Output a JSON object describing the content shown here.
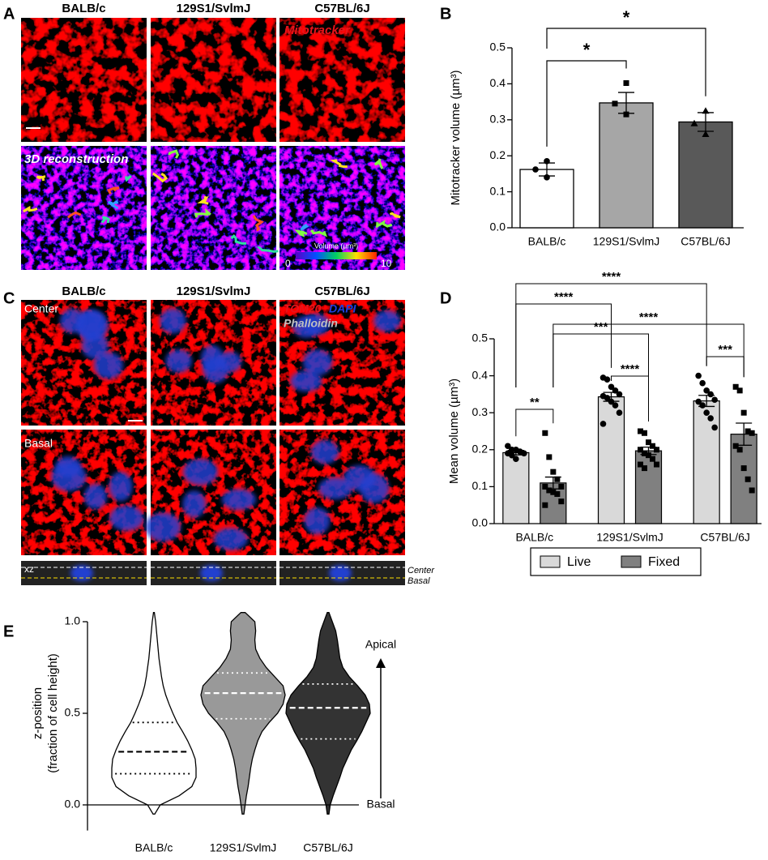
{
  "panel_labels": [
    "A",
    "B",
    "C",
    "D",
    "E"
  ],
  "panel_a": {
    "columns": [
      "BALB/c",
      "129S1/SvlmJ",
      "C57BL/6J"
    ],
    "stain_label": "Mitotracker",
    "row_label": "3D reconstruction",
    "colorbar": {
      "label": "Volume (µm³)",
      "min": 0,
      "max": 10
    }
  },
  "panel_c": {
    "columns": [
      "BALB/c",
      "129S1/SvlmJ",
      "C57BL/6J"
    ],
    "stains": [
      "TOM20",
      "DAPI",
      "Phalloidin"
    ],
    "stain_colors": [
      "#e8141b",
      "#1f3fe0",
      "#c0c0c0"
    ],
    "row_labels": [
      "Center",
      "Basal"
    ],
    "xz_label": "xz",
    "plane_labels": [
      "Center",
      "Basal"
    ]
  },
  "chart_data": [
    {
      "type": "bar",
      "categories": [
        "BALB/c",
        "129S1/SvlmJ",
        "C57BL/6J"
      ],
      "values": [
        0.162,
        0.347,
        0.294
      ],
      "errors": [
        0.018,
        0.029,
        0.026
      ],
      "points": [
        [
          0.185,
          0.162,
          0.14
        ],
        [
          0.402,
          0.345,
          0.315
        ],
        [
          0.325,
          0.29,
          0.26
        ]
      ],
      "markers": [
        "circle",
        "square",
        "triangle"
      ],
      "colors": [
        "#ffffff",
        "#a6a6a6",
        "#595959"
      ],
      "ylabel": "Mitotracker volume  (µm³)",
      "ylim": [
        0,
        0.5
      ],
      "yticks": [
        {
          "value": 0,
          "label": "0.0"
        },
        0.1,
        0.2,
        0.3,
        0.4,
        0.5
      ],
      "comparisons": [
        {
          "pair": [
            0,
            1
          ],
          "label": "*"
        },
        {
          "pair": [
            0,
            2
          ],
          "label": "*"
        }
      ]
    },
    {
      "type": "grouped_bar",
      "categories": [
        "BALB/c",
        "129S1/SvlmJ",
        "C57BL/6J"
      ],
      "series": [
        {
          "name": "Live",
          "color": "#d9d9d9",
          "marker": "circle",
          "values": [
            0.192,
            0.343,
            0.332
          ],
          "errors": [
            0.006,
            0.012,
            0.015
          ],
          "points": [
            [
              0.21,
              0.2,
              0.2,
              0.195,
              0.19,
              0.19,
              0.185,
              0.175
            ],
            [
              0.395,
              0.39,
              0.37,
              0.36,
              0.35,
              0.345,
              0.34,
              0.33,
              0.32,
              0.3,
              0.27
            ],
            [
              0.4,
              0.38,
              0.36,
              0.35,
              0.335,
              0.33,
              0.32,
              0.3,
              0.285,
              0.26
            ]
          ]
        },
        {
          "name": "Fixed",
          "color": "#808080",
          "marker": "square",
          "values": [
            0.11,
            0.197,
            0.242
          ],
          "errors": [
            0.016,
            0.01,
            0.03
          ],
          "points": [
            [
              0.245,
              0.18,
              0.14,
              0.12,
              0.1,
              0.1,
              0.09,
              0.085,
              0.08,
              0.06,
              0.05
            ],
            [
              0.25,
              0.245,
              0.22,
              0.21,
              0.2,
              0.2,
              0.19,
              0.185,
              0.175,
              0.16,
              0.16,
              0.15
            ],
            [
              0.37,
              0.36,
              0.3,
              0.25,
              0.245,
              0.21,
              0.2,
              0.15,
              0.12,
              0.09
            ]
          ]
        }
      ],
      "ylabel": "Mean volume  (µm³)",
      "ylim": [
        0,
        0.5
      ],
      "yticks": [
        {
          "value": 0,
          "label": "0.0"
        },
        0.1,
        0.2,
        0.3,
        0.4,
        0.5
      ],
      "legend": "bottom",
      "comparisons": [
        {
          "pair": [
            [
              0,
              0
            ],
            [
              0,
              1
            ]
          ],
          "label": "**"
        },
        {
          "pair": [
            [
              1,
              0
            ],
            [
              1,
              1
            ]
          ],
          "label": "****"
        },
        {
          "pair": [
            [
              2,
              0
            ],
            [
              2,
              1
            ]
          ],
          "label": "***"
        },
        {
          "pair": [
            [
              0,
              1
            ],
            [
              1,
              1
            ]
          ],
          "label": "***"
        },
        {
          "pair": [
            [
              0,
              1
            ],
            [
              2,
              1
            ]
          ],
          "label": "****"
        },
        {
          "pair": [
            [
              0,
              0
            ],
            [
              1,
              0
            ]
          ],
          "label": "****"
        },
        {
          "pair": [
            [
              0,
              0
            ],
            [
              2,
              0
            ]
          ],
          "label": "****"
        }
      ]
    },
    {
      "type": "violin",
      "categories": [
        "BALB/c",
        "129S1/SvlmJ",
        "C57BL/6J"
      ],
      "colors": [
        "#ffffff",
        "#999999",
        "#333333"
      ],
      "quartile_colors": [
        "#000000",
        "#ffffff",
        "#ffffff"
      ],
      "quartiles": [
        [
          0.17,
          0.29,
          0.45
        ],
        [
          0.47,
          0.61,
          0.72
        ],
        [
          0.36,
          0.53,
          0.66
        ]
      ],
      "density_y": [
        -0.05,
        0,
        0.05,
        0.1,
        0.15,
        0.2,
        0.25,
        0.3,
        0.35,
        0.4,
        0.45,
        0.5,
        0.55,
        0.6,
        0.65,
        0.7,
        0.75,
        0.8,
        0.85,
        0.9,
        0.95,
        1,
        1.05
      ],
      "densities": [
        [
          0.02,
          0.15,
          0.6,
          0.9,
          1,
          1,
          0.98,
          0.9,
          0.8,
          0.68,
          0.55,
          0.45,
          0.36,
          0.28,
          0.22,
          0.18,
          0.15,
          0.12,
          0.1,
          0.08,
          0.06,
          0.04,
          0.01
        ],
        [
          0.02,
          0.05,
          0.08,
          0.12,
          0.15,
          0.18,
          0.22,
          0.28,
          0.35,
          0.45,
          0.62,
          0.82,
          0.95,
          1,
          0.95,
          0.75,
          0.55,
          0.4,
          0.3,
          0.28,
          0.3,
          0.28,
          0.05
        ],
        [
          0.02,
          0.05,
          0.12,
          0.2,
          0.28,
          0.35,
          0.45,
          0.55,
          0.68,
          0.8,
          0.9,
          1,
          0.98,
          0.88,
          0.7,
          0.5,
          0.35,
          0.28,
          0.25,
          0.22,
          0.18,
          0.1,
          0.02
        ]
      ],
      "ylabel": [
        "z-position",
        "(fraction of cell height)"
      ],
      "ylim": [
        -0.14,
        1
      ],
      "yticks": [
        {
          "value": 0,
          "label": "0.0"
        },
        0.5,
        {
          "value": 1,
          "label": "1.0"
        }
      ],
      "annotations": {
        "top": "Apical",
        "bottom": "Basal"
      }
    }
  ]
}
